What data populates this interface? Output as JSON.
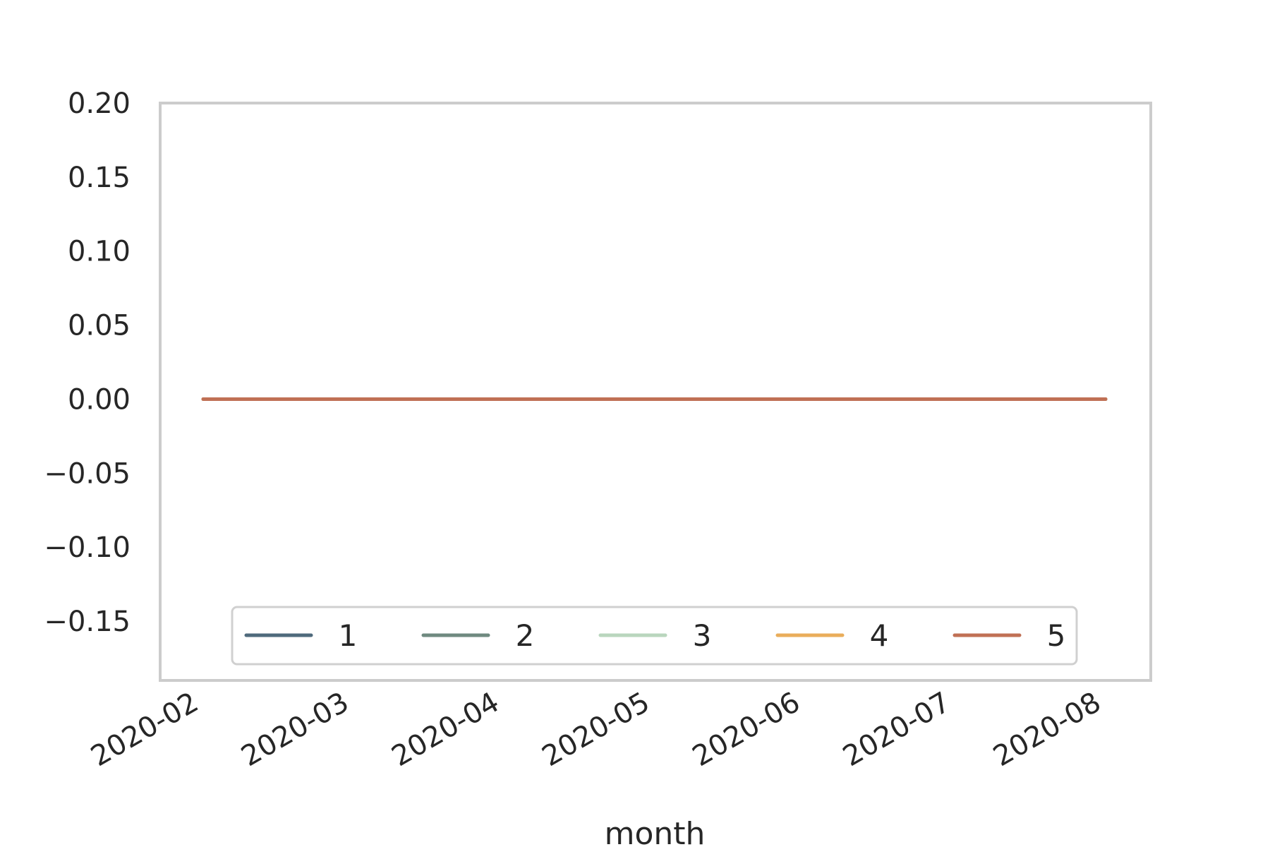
{
  "chart_data": {
    "type": "line",
    "xlabel": "month",
    "ylabel": "",
    "x": [
      "2020-02",
      "2020-03",
      "2020-04",
      "2020-05",
      "2020-06",
      "2020-07",
      "2020-08"
    ],
    "x_tick_labels": [
      "2020-02",
      "2020-03",
      "2020-04",
      "2020-05",
      "2020-06",
      "2020-07",
      "2020-08"
    ],
    "y_ticks": [
      0.2,
      0.15,
      0.1,
      0.05,
      0.0,
      -0.05,
      -0.1,
      -0.15
    ],
    "y_tick_labels": [
      "0.20",
      "0.15",
      "0.10",
      "0.05",
      "0.00",
      "−0.05",
      "−0.10",
      "−0.15"
    ],
    "ylim": [
      -0.19,
      0.2
    ],
    "grid": false,
    "legend_placement": "lower-center",
    "series": [
      {
        "name": "1",
        "color": "#4f6a7c",
        "values": [
          0,
          0,
          0,
          0,
          0,
          0,
          0
        ]
      },
      {
        "name": "2",
        "color": "#6f8a80",
        "values": [
          0,
          0,
          0,
          0,
          0,
          0,
          0
        ]
      },
      {
        "name": "3",
        "color": "#b9d6bd",
        "values": [
          0,
          0,
          0,
          0,
          0,
          0,
          0
        ]
      },
      {
        "name": "4",
        "color": "#e9ad5b",
        "values": [
          0,
          0,
          0,
          0,
          0,
          0,
          0
        ]
      },
      {
        "name": "5",
        "color": "#c07055",
        "values": [
          0,
          0,
          0,
          0,
          0,
          0,
          0
        ]
      }
    ]
  }
}
